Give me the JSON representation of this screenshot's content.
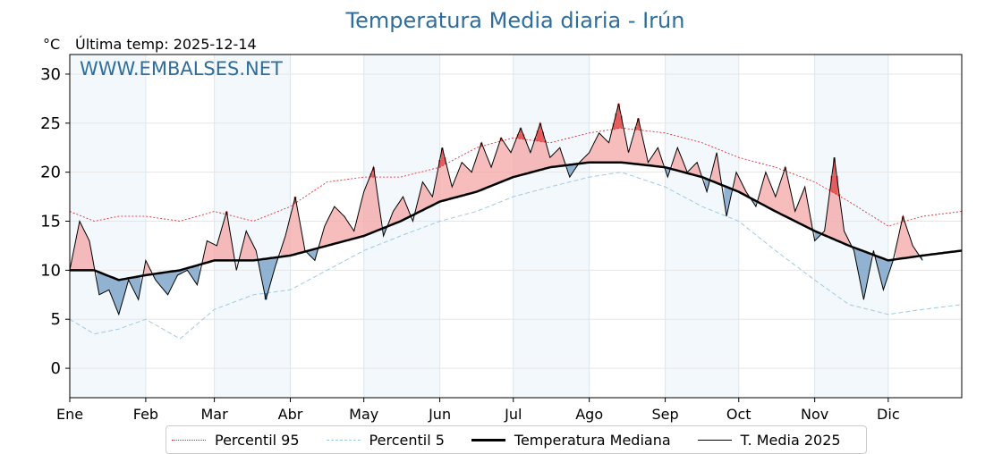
{
  "chart_data": {
    "type": "line",
    "title": "Temperatura Media diaria - Irún",
    "ylabel": "°C",
    "subtitle": "Última temp: 2025-12-14",
    "watermark": "WWW.EMBALSES.NET",
    "ylim": [
      -3,
      32
    ],
    "yticks": [
      0,
      5,
      10,
      15,
      20,
      25,
      30
    ],
    "x_days": 365,
    "months": [
      {
        "label": "Ene",
        "start_day": 0
      },
      {
        "label": "Feb",
        "start_day": 31
      },
      {
        "label": "Mar",
        "start_day": 59
      },
      {
        "label": "Abr",
        "start_day": 90
      },
      {
        "label": "May",
        "start_day": 120
      },
      {
        "label": "Jun",
        "start_day": 151
      },
      {
        "label": "Jul",
        "start_day": 181
      },
      {
        "label": "Ago",
        "start_day": 212
      },
      {
        "label": "Sep",
        "start_day": 243
      },
      {
        "label": "Oct",
        "start_day": 273
      },
      {
        "label": "Nov",
        "start_day": 304
      },
      {
        "label": "Dic",
        "start_day": 334
      }
    ],
    "series": [
      {
        "name": "Percentil 95",
        "color": "#e41a1c",
        "style": "dotted",
        "anchors": [
          [
            0,
            16.0
          ],
          [
            10,
            15.0
          ],
          [
            20,
            15.5
          ],
          [
            31,
            15.5
          ],
          [
            45,
            15.0
          ],
          [
            59,
            16.0
          ],
          [
            75,
            15.0
          ],
          [
            90,
            16.5
          ],
          [
            105,
            19.0
          ],
          [
            120,
            19.5
          ],
          [
            135,
            19.5
          ],
          [
            151,
            20.5
          ],
          [
            166,
            22.5
          ],
          [
            181,
            23.5
          ],
          [
            196,
            23.0
          ],
          [
            212,
            24.0
          ],
          [
            225,
            24.5
          ],
          [
            243,
            24.0
          ],
          [
            258,
            23.0
          ],
          [
            273,
            21.5
          ],
          [
            288,
            20.5
          ],
          [
            304,
            19.0
          ],
          [
            318,
            17.0
          ],
          [
            334,
            14.5
          ],
          [
            348,
            15.5
          ],
          [
            364,
            16.0
          ]
        ]
      },
      {
        "name": "Percentil 5",
        "color": "#9ecae1",
        "style": "dashed",
        "anchors": [
          [
            0,
            5.0
          ],
          [
            10,
            3.5
          ],
          [
            20,
            4.0
          ],
          [
            31,
            5.0
          ],
          [
            45,
            3.0
          ],
          [
            59,
            6.0
          ],
          [
            75,
            7.5
          ],
          [
            90,
            8.0
          ],
          [
            105,
            10.0
          ],
          [
            120,
            12.0
          ],
          [
            135,
            13.5
          ],
          [
            151,
            15.0
          ],
          [
            166,
            16.0
          ],
          [
            181,
            17.5
          ],
          [
            196,
            18.5
          ],
          [
            212,
            19.5
          ],
          [
            225,
            20.0
          ],
          [
            243,
            18.5
          ],
          [
            258,
            16.5
          ],
          [
            273,
            15.0
          ],
          [
            288,
            12.0
          ],
          [
            304,
            9.0
          ],
          [
            318,
            6.5
          ],
          [
            334,
            5.5
          ],
          [
            348,
            6.0
          ],
          [
            364,
            6.5
          ]
        ]
      },
      {
        "name": "Temperatura Mediana",
        "color": "#000000",
        "style": "thick",
        "anchors": [
          [
            0,
            10.0
          ],
          [
            10,
            10.0
          ],
          [
            20,
            9.0
          ],
          [
            31,
            9.5
          ],
          [
            45,
            10.0
          ],
          [
            59,
            11.0
          ],
          [
            75,
            11.0
          ],
          [
            90,
            11.5
          ],
          [
            105,
            12.5
          ],
          [
            120,
            13.5
          ],
          [
            135,
            15.0
          ],
          [
            151,
            17.0
          ],
          [
            166,
            18.0
          ],
          [
            181,
            19.5
          ],
          [
            196,
            20.5
          ],
          [
            212,
            21.0
          ],
          [
            225,
            21.0
          ],
          [
            243,
            20.5
          ],
          [
            258,
            19.5
          ],
          [
            273,
            18.0
          ],
          [
            288,
            16.0
          ],
          [
            304,
            14.0
          ],
          [
            318,
            12.5
          ],
          [
            334,
            11.0
          ],
          [
            348,
            11.5
          ],
          [
            364,
            12.0
          ]
        ]
      },
      {
        "name": "T. Media 2025",
        "color": "#000000",
        "style": "thin",
        "anchors": [
          [
            0,
            10.0
          ],
          [
            4,
            15.0
          ],
          [
            8,
            13.0
          ],
          [
            12,
            7.5
          ],
          [
            16,
            8.0
          ],
          [
            20,
            5.5
          ],
          [
            24,
            9.0
          ],
          [
            28,
            7.0
          ],
          [
            31,
            11.0
          ],
          [
            35,
            9.0
          ],
          [
            40,
            7.5
          ],
          [
            44,
            9.5
          ],
          [
            48,
            10.0
          ],
          [
            52,
            8.5
          ],
          [
            56,
            13.0
          ],
          [
            60,
            12.5
          ],
          [
            64,
            16.0
          ],
          [
            68,
            10.0
          ],
          [
            72,
            14.0
          ],
          [
            76,
            12.0
          ],
          [
            80,
            7.0
          ],
          [
            84,
            10.5
          ],
          [
            88,
            13.5
          ],
          [
            92,
            17.5
          ],
          [
            96,
            12.0
          ],
          [
            100,
            11.0
          ],
          [
            104,
            14.5
          ],
          [
            108,
            16.5
          ],
          [
            112,
            15.5
          ],
          [
            116,
            14.0
          ],
          [
            120,
            18.0
          ],
          [
            124,
            20.5
          ],
          [
            128,
            13.5
          ],
          [
            132,
            16.0
          ],
          [
            136,
            17.5
          ],
          [
            140,
            15.0
          ],
          [
            144,
            19.0
          ],
          [
            148,
            17.5
          ],
          [
            152,
            22.5
          ],
          [
            156,
            18.5
          ],
          [
            160,
            21.0
          ],
          [
            164,
            20.0
          ],
          [
            168,
            23.0
          ],
          [
            172,
            20.5
          ],
          [
            176,
            23.5
          ],
          [
            180,
            22.0
          ],
          [
            184,
            24.5
          ],
          [
            188,
            22.0
          ],
          [
            192,
            25.0
          ],
          [
            196,
            21.5
          ],
          [
            200,
            22.5
          ],
          [
            204,
            19.5
          ],
          [
            208,
            21.0
          ],
          [
            212,
            22.0
          ],
          [
            216,
            24.0
          ],
          [
            220,
            23.0
          ],
          [
            224,
            27.0
          ],
          [
            228,
            22.0
          ],
          [
            232,
            25.5
          ],
          [
            236,
            21.0
          ],
          [
            240,
            22.5
          ],
          [
            244,
            19.5
          ],
          [
            248,
            22.5
          ],
          [
            252,
            20.0
          ],
          [
            256,
            21.0
          ],
          [
            260,
            18.0
          ],
          [
            264,
            22.0
          ],
          [
            268,
            15.5
          ],
          [
            272,
            20.0
          ],
          [
            276,
            18.0
          ],
          [
            280,
            16.5
          ],
          [
            284,
            20.0
          ],
          [
            288,
            17.5
          ],
          [
            292,
            20.5
          ],
          [
            296,
            16.0
          ],
          [
            300,
            18.5
          ],
          [
            304,
            13.0
          ],
          [
            308,
            14.0
          ],
          [
            312,
            21.5
          ],
          [
            316,
            14.0
          ],
          [
            320,
            12.0
          ],
          [
            324,
            7.0
          ],
          [
            328,
            12.0
          ],
          [
            332,
            8.0
          ],
          [
            336,
            11.0
          ],
          [
            340,
            15.5
          ],
          [
            344,
            12.5
          ],
          [
            348,
            11.0
          ]
        ]
      }
    ],
    "legend_position": "bottom-center"
  }
}
